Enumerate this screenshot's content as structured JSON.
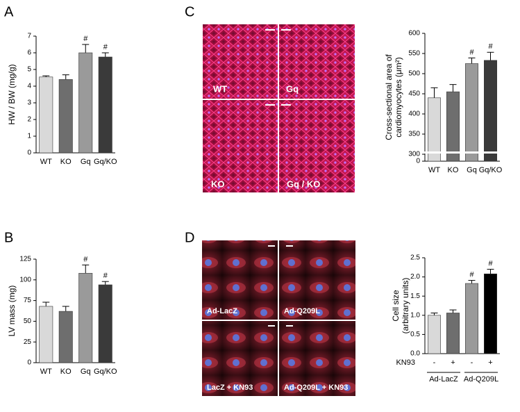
{
  "panels": [
    "A",
    "B",
    "C",
    "D"
  ],
  "images": {
    "C": [
      "WT",
      "Gq",
      "KO",
      "Gq / KO"
    ],
    "D": [
      "Ad-LacZ",
      "Ad-Q209L",
      "LacZ + KN93",
      "Ad-Q209L + KN93"
    ]
  },
  "chart_data": [
    {
      "type": "bar",
      "ylabel": [
        "HW / BW (mg/g)"
      ],
      "categories": [
        "WT",
        "KO",
        "Gq",
        "Gq/KO"
      ],
      "values": [
        4.55,
        4.4,
        6.0,
        5.75
      ],
      "errors": [
        0.07,
        0.28,
        0.5,
        0.25
      ],
      "annotations": [
        null,
        null,
        "#",
        "#"
      ],
      "colors": [
        "#d9d9d9",
        "#6e6e6e",
        "#9a9a9a",
        "#3a3a3a"
      ],
      "ylim": [
        0,
        7
      ],
      "yticks": [
        0,
        1,
        2,
        3,
        4,
        5,
        6,
        7
      ]
    },
    {
      "type": "bar",
      "ylabel": [
        "LV mass (mg)"
      ],
      "categories": [
        "WT",
        "KO",
        "Gq",
        "Gq/KO"
      ],
      "values": [
        68,
        62,
        108,
        94
      ],
      "errors": [
        5,
        6,
        10,
        4
      ],
      "annotations": [
        null,
        null,
        "#",
        "#"
      ],
      "colors": [
        "#d9d9d9",
        "#6e6e6e",
        "#9a9a9a",
        "#3a3a3a"
      ],
      "ylim": [
        0,
        125
      ],
      "yticks": [
        0,
        25,
        50,
        75,
        100,
        125
      ]
    },
    {
      "type": "bar",
      "ylabel": [
        "Cross-sectional area of",
        "cardiomyocytes (μm²)"
      ],
      "categories": [
        "WT",
        "KO",
        "Gq",
        "Gq/KO"
      ],
      "values": [
        440,
        455,
        525,
        533
      ],
      "errors": [
        25,
        18,
        14,
        20
      ],
      "annotations": [
        null,
        null,
        "#",
        "#"
      ],
      "colors": [
        "#d9d9d9",
        "#6e6e6e",
        "#9a9a9a",
        "#3a3a3a"
      ],
      "ylim": [
        0,
        600
      ],
      "axis_break": [
        0,
        300
      ],
      "yticks": [
        0,
        300,
        350,
        400,
        450,
        500,
        550,
        600
      ]
    },
    {
      "type": "bar",
      "ylabel": [
        "Cell size",
        "(arbitrary units)"
      ],
      "categories": [
        "-",
        "+",
        "-",
        "+"
      ],
      "category_title": "KN93",
      "groups": [
        "Ad-LacZ",
        "Ad-Q209L"
      ],
      "values": [
        1.0,
        1.06,
        1.83,
        2.08
      ],
      "errors": [
        0.06,
        0.08,
        0.08,
        0.12
      ],
      "annotations": [
        null,
        null,
        "#",
        "#"
      ],
      "colors": [
        "#d9d9d9",
        "#6e6e6e",
        "#9a9a9a",
        "#000000"
      ],
      "ylim": [
        0,
        2.5
      ],
      "yticks": [
        {
          "value": 0,
          "label": "0.0"
        },
        0.5,
        {
          "value": 1,
          "label": "1.0"
        },
        1.5,
        {
          "value": 2,
          "label": "2.0"
        },
        2.5
      ]
    }
  ]
}
